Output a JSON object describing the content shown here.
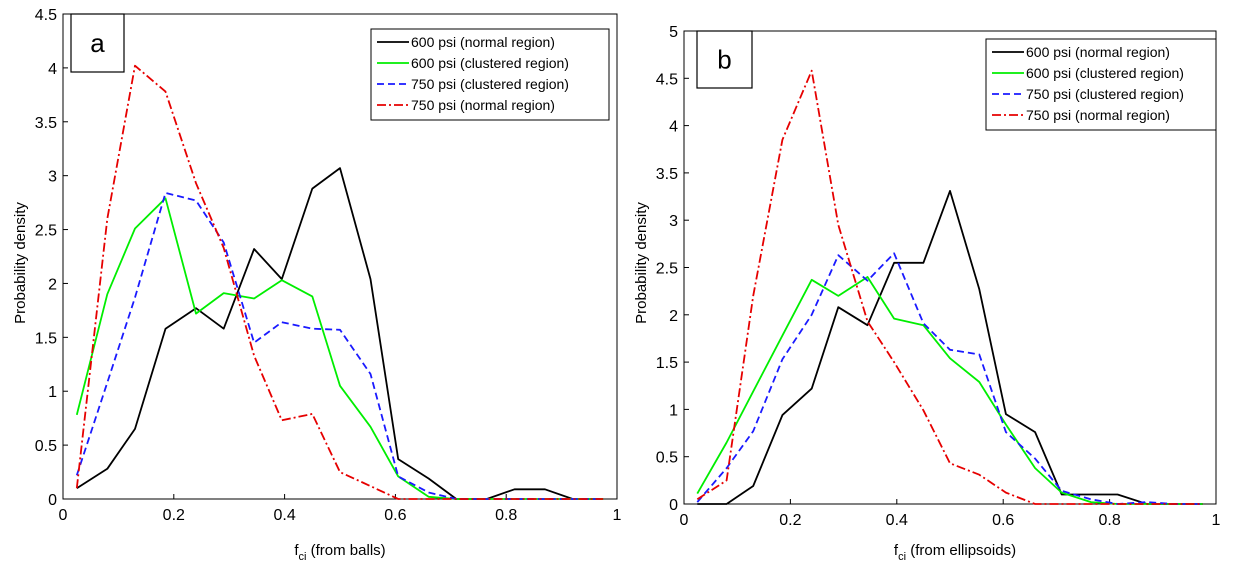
{
  "chart_data": [
    {
      "panel_label": "a",
      "type": "line",
      "xlabel_main": "f",
      "xlabel_sub": "ci",
      "xlabel_rest": " (from balls)",
      "ylabel": "Probability density",
      "xlim": [
        0,
        1
      ],
      "ylim": [
        0,
        4.5
      ],
      "xticks": [
        "0",
        "0.2",
        "0.4",
        "0.6",
        "0.8",
        "1"
      ],
      "yticks": [
        "0",
        "0.5",
        "1",
        "1.5",
        "2",
        "2.5",
        "3",
        "3.5",
        "4",
        "4.5"
      ],
      "legend_position": "top-right",
      "x": [
        0.025,
        0.08,
        0.13,
        0.185,
        0.24,
        0.29,
        0.345,
        0.395,
        0.45,
        0.5,
        0.555,
        0.605,
        0.66,
        0.71,
        0.765,
        0.815,
        0.87,
        0.92,
        0.975
      ],
      "series": [
        {
          "name": "600 psi (normal region)",
          "color": "#000000",
          "dash": "solid",
          "values": [
            0.1,
            0.28,
            0.65,
            1.58,
            1.77,
            1.58,
            2.32,
            2.04,
            2.88,
            3.07,
            2.04,
            0.37,
            0.19,
            0.0,
            0.0,
            0.09,
            0.09,
            0.0,
            0.0
          ]
        },
        {
          "name": "600 psi (clustered region)",
          "color": "#00ee00",
          "dash": "solid",
          "values": [
            0.78,
            1.9,
            2.51,
            2.79,
            1.72,
            1.91,
            1.86,
            2.03,
            1.88,
            1.05,
            0.67,
            0.21,
            0.02,
            0.0,
            0.0,
            0.0,
            0.0,
            0.0,
            0.0
          ]
        },
        {
          "name": "750 psi (clustered region)",
          "color": "#1a1aff",
          "dash": "dash",
          "values": [
            0.22,
            1.08,
            1.87,
            2.84,
            2.77,
            2.38,
            1.45,
            1.64,
            1.58,
            1.57,
            1.16,
            0.21,
            0.06,
            0.0,
            0.0,
            0.0,
            0.0,
            0.0,
            0.0
          ]
        },
        {
          "name": "750 psi (normal region)",
          "color": "#e60000",
          "dash": "dashdot",
          "values": [
            0.1,
            2.6,
            4.02,
            3.78,
            2.93,
            2.33,
            1.33,
            0.73,
            0.79,
            0.25,
            0.12,
            0.0,
            0.0,
            0.0,
            0.0,
            0.0,
            0.0,
            0.0,
            0.0
          ]
        }
      ]
    },
    {
      "panel_label": "b",
      "type": "line",
      "xlabel_main": "f",
      "xlabel_sub": "ci",
      "xlabel_rest": " (from ellipsoids)",
      "ylabel": "Probability density",
      "xlim": [
        0,
        1
      ],
      "ylim": [
        0,
        5
      ],
      "xticks": [
        "0",
        "0.2",
        "0.4",
        "0.6",
        "0.8",
        "1"
      ],
      "yticks": [
        "0",
        "0.5",
        "1",
        "1.5",
        "2",
        "2.5",
        "3",
        "3.5",
        "4",
        "4.5",
        "5"
      ],
      "legend_position": "top-right",
      "x": [
        0.025,
        0.08,
        0.13,
        0.185,
        0.24,
        0.29,
        0.345,
        0.395,
        0.45,
        0.5,
        0.555,
        0.605,
        0.66,
        0.71,
        0.765,
        0.815,
        0.87,
        0.92,
        0.975
      ],
      "series": [
        {
          "name": "600 psi (normal region)",
          "color": "#000000",
          "dash": "solid",
          "values": [
            0.0,
            0.0,
            0.19,
            0.94,
            1.22,
            2.08,
            1.89,
            2.55,
            2.55,
            3.31,
            2.27,
            0.95,
            0.76,
            0.1,
            0.1,
            0.1,
            0.0,
            0.0,
            0.0
          ]
        },
        {
          "name": "600 psi (clustered region)",
          "color": "#00ee00",
          "dash": "solid",
          "values": [
            0.11,
            0.65,
            1.19,
            1.78,
            2.37,
            2.2,
            2.4,
            1.96,
            1.89,
            1.54,
            1.29,
            0.84,
            0.38,
            0.12,
            0.02,
            0.0,
            0.0,
            0.0,
            0.0
          ]
        },
        {
          "name": "750 psi (clustered region)",
          "color": "#1a1aff",
          "dash": "dash",
          "values": [
            0.02,
            0.38,
            0.77,
            1.53,
            2.0,
            2.63,
            2.36,
            2.65,
            1.91,
            1.63,
            1.58,
            0.76,
            0.48,
            0.14,
            0.05,
            0.0,
            0.02,
            0.0,
            0.0
          ]
        },
        {
          "name": "750 psi (normal region)",
          "color": "#e60000",
          "dash": "dashdot",
          "values": [
            0.05,
            0.25,
            2.2,
            3.85,
            4.58,
            2.95,
            1.93,
            1.5,
            0.99,
            0.43,
            0.31,
            0.12,
            0.0,
            0.0,
            0.0,
            0.0,
            0.0,
            0.0,
            0.0
          ]
        }
      ]
    }
  ]
}
